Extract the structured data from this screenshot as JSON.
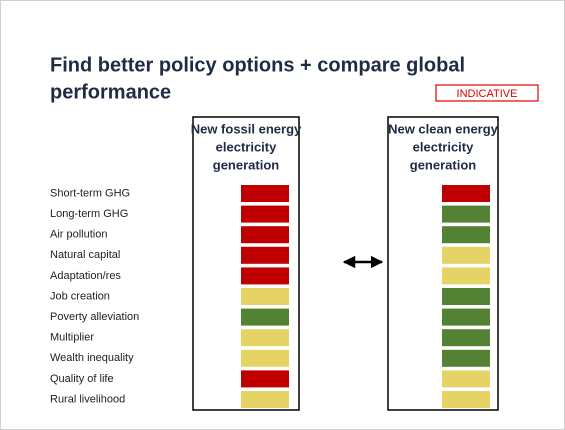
{
  "title": [
    "Find better policy options + compare global",
    "performance"
  ],
  "tag": "INDICATIVE",
  "rows": [
    "Short-term GHG",
    "Long-term GHG",
    "Air pollution",
    "Natural capital",
    "Adaptation/res",
    "Job creation",
    "Poverty alleviation",
    "Multiplier",
    "Wealth inequality",
    "Quality of life",
    "Rural livelihood"
  ],
  "columns": [
    {
      "header": [
        "New fossil energy",
        "electricity",
        "generation"
      ],
      "cells": [
        "#c00000",
        "#c00000",
        "#c00000",
        "#c00000",
        "#c00000",
        "#e6d366",
        "#548235",
        "#e6d366",
        "#e6d366",
        "#c00000",
        "#e6d366"
      ]
    },
    {
      "header": [
        "New clean energy",
        "electricity",
        "generation"
      ],
      "cells": [
        "#c00000",
        "#548235",
        "#548235",
        "#e6d366",
        "#e6d366",
        "#548235",
        "#548235",
        "#548235",
        "#548235",
        "#e6d366",
        "#e6d366"
      ]
    }
  ]
}
